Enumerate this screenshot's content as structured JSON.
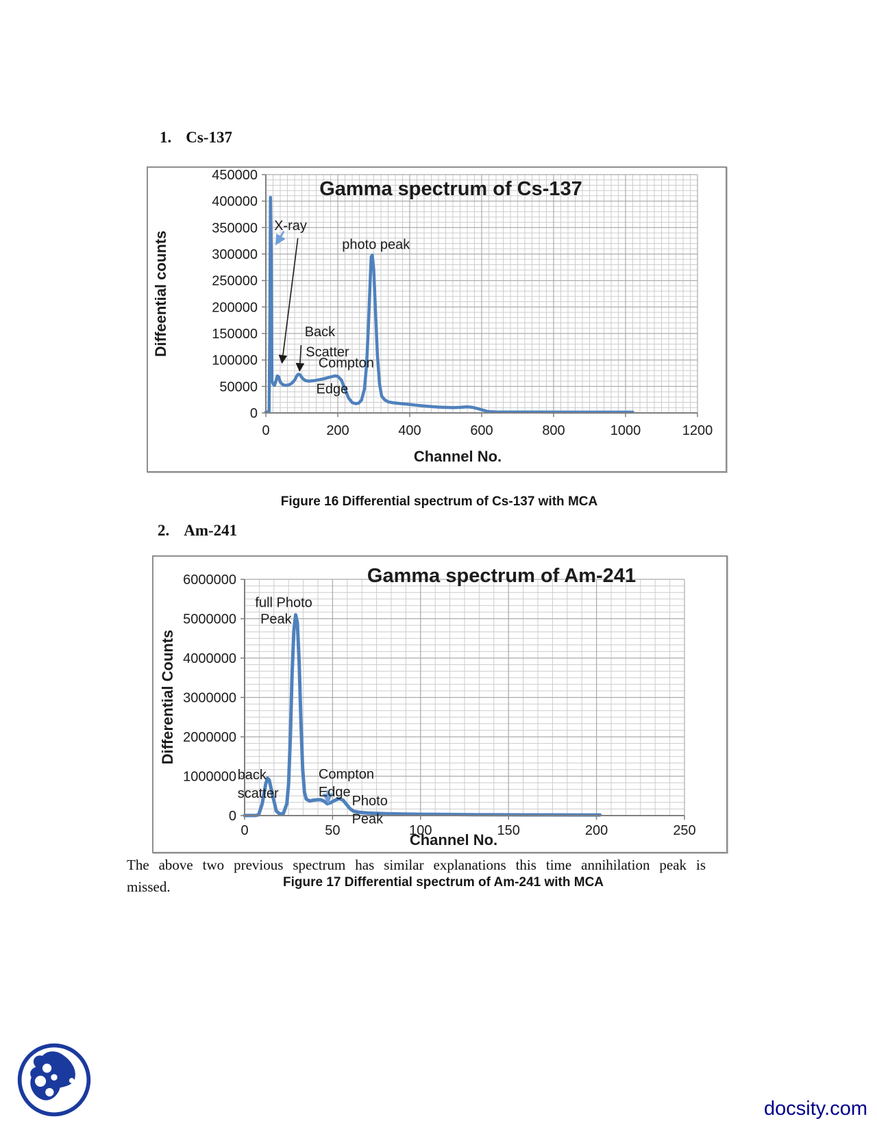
{
  "page": {
    "heading1": {
      "number": "1.",
      "label": "Cs-137"
    },
    "heading2": {
      "number": "2.",
      "label": "Am-241"
    },
    "caption1": "Figure 16 Differential spectrum of Cs-137 with MCA",
    "caption2": "Figure 17 Differential spectrum of Am-241 with MCA",
    "body_lines": [
      "The above two previous spectrum has similar explanations this time annihilation peak is",
      "missed."
    ],
    "footer": {
      "site": "docsity.com"
    }
  },
  "colors": {
    "curve": "#4f81bd",
    "grid_minor": "#cccccc",
    "grid_major": "#ababab",
    "axis": "#7f7f7f",
    "text": "#1c1c1c",
    "arrow_black": "#1a1a1a",
    "arrow_blue": "#6f9fd8",
    "brand_navy": "#00008b",
    "logo_blue": "#1a3a9e"
  },
  "chart_data": [
    {
      "type": "line",
      "title": "Gamma spectrum of Cs-137",
      "xlabel": "Channel No.",
      "ylabel": "Diffeential counts",
      "xlim": [
        0,
        1200
      ],
      "ylim": [
        0,
        450000
      ],
      "xticks": [
        0,
        200,
        400,
        600,
        800,
        1000,
        1200
      ],
      "yticks": [
        0,
        50000,
        100000,
        150000,
        200000,
        250000,
        300000,
        350000,
        400000,
        450000
      ],
      "x_minor_step": 20,
      "y_minor_step": 10000,
      "grid": true,
      "legend": "none",
      "series": [
        {
          "name": "Cs-137 differential spectrum",
          "points": [
            [
              0,
              1500
            ],
            [
              9,
              2000
            ],
            [
              11,
              150000
            ],
            [
              13,
              407000
            ],
            [
              15,
              300000
            ],
            [
              17,
              60000
            ],
            [
              20,
              55000
            ],
            [
              24,
              52000
            ],
            [
              28,
              60000
            ],
            [
              32,
              70000
            ],
            [
              36,
              68000
            ],
            [
              40,
              58000
            ],
            [
              48,
              53000
            ],
            [
              56,
              52000
            ],
            [
              64,
              53000
            ],
            [
              72,
              56000
            ],
            [
              80,
              62000
            ],
            [
              86,
              70000
            ],
            [
              90,
              73000
            ],
            [
              95,
              72000
            ],
            [
              102,
              65000
            ],
            [
              110,
              61000
            ],
            [
              120,
              60000
            ],
            [
              135,
              61000
            ],
            [
              150,
              63000
            ],
            [
              165,
              65000
            ],
            [
              180,
              68000
            ],
            [
              192,
              70000
            ],
            [
              200,
              69000
            ],
            [
              210,
              62000
            ],
            [
              220,
              45000
            ],
            [
              230,
              28000
            ],
            [
              240,
              19500
            ],
            [
              250,
              17500
            ],
            [
              258,
              18500
            ],
            [
              266,
              24000
            ],
            [
              274,
              45000
            ],
            [
              280,
              90000
            ],
            [
              285,
              160000
            ],
            [
              290,
              250000
            ],
            [
              293,
              295000
            ],
            [
              296,
              298000
            ],
            [
              300,
              270000
            ],
            [
              305,
              190000
            ],
            [
              310,
              110000
            ],
            [
              316,
              55000
            ],
            [
              322,
              32000
            ],
            [
              330,
              25000
            ],
            [
              340,
              21000
            ],
            [
              355,
              19000
            ],
            [
              370,
              18000
            ],
            [
              385,
              17000
            ],
            [
              400,
              16000
            ],
            [
              420,
              14500
            ],
            [
              440,
              13000
            ],
            [
              460,
              12000
            ],
            [
              480,
              11000
            ],
            [
              500,
              10500
            ],
            [
              520,
              10000
            ],
            [
              540,
              10500
            ],
            [
              560,
              11500
            ],
            [
              575,
              10500
            ],
            [
              590,
              8000
            ],
            [
              605,
              5000
            ],
            [
              615,
              3000
            ],
            [
              625,
              2200
            ],
            [
              640,
              1800
            ],
            [
              680,
              1600
            ],
            [
              750,
              1500
            ],
            [
              850,
              1400
            ],
            [
              950,
              1400
            ],
            [
              1020,
              1400
            ]
          ]
        }
      ],
      "annotations": [
        {
          "text": "X-ray",
          "x": 23,
          "y": 345000
        },
        {
          "text": "photo peak",
          "x": 212,
          "y": 310000
        },
        {
          "text": "Back",
          "x": 108,
          "y": 145000
        },
        {
          "text": "Scatter",
          "x": 111,
          "y": 107000
        },
        {
          "text": "Compton",
          "x": 146,
          "y": 86000
        },
        {
          "text": "Edge",
          "x": 140,
          "y": 37000
        }
      ],
      "arrows": [
        {
          "x1": 89,
          "y1": 330000,
          "x2": 45,
          "y2": 95000,
          "color": "black"
        },
        {
          "x1": 98,
          "y1": 128000,
          "x2": 94,
          "y2": 80000,
          "color": "black"
        },
        {
          "x1": 50,
          "y1": 343000,
          "x2": 29,
          "y2": 319000,
          "color": "blue"
        }
      ]
    },
    {
      "type": "line",
      "title": "Gamma spectrum of Am-241",
      "xlabel": "Channel No.",
      "ylabel": "Differential Counts",
      "xlim": [
        0,
        250
      ],
      "ylim": [
        0,
        6000000
      ],
      "xticks": [
        0,
        50,
        100,
        150,
        200,
        250
      ],
      "yticks": [
        0,
        1000000,
        2000000,
        3000000,
        4000000,
        5000000,
        6000000
      ],
      "x_minor_step": 8.3333,
      "y_minor_step": 166667,
      "grid": true,
      "legend": "none",
      "series": [
        {
          "name": "Am-241 differential spectrum",
          "points": [
            [
              0,
              1000
            ],
            [
              6,
              2000
            ],
            [
              8,
              20000
            ],
            [
              10,
              300000
            ],
            [
              12,
              800000
            ],
            [
              13,
              950000
            ],
            [
              14,
              900000
            ],
            [
              16,
              500000
            ],
            [
              18,
              120000
            ],
            [
              20,
              35000
            ],
            [
              22,
              50000
            ],
            [
              24,
              300000
            ],
            [
              25,
              800000
            ],
            [
              26,
              2000000
            ],
            [
              27,
              3600000
            ],
            [
              28,
              4700000
            ],
            [
              29,
              5100000
            ],
            [
              30,
              4900000
            ],
            [
              31,
              3900000
            ],
            [
              32,
              2400000
            ],
            [
              33,
              1200000
            ],
            [
              34,
              600000
            ],
            [
              35,
              420000
            ],
            [
              37,
              370000
            ],
            [
              39,
              390000
            ],
            [
              41,
              400000
            ],
            [
              43,
              405000
            ],
            [
              45,
              370000
            ],
            [
              47,
              300000
            ],
            [
              49,
              330000
            ],
            [
              51,
              380000
            ],
            [
              53,
              420000
            ],
            [
              54,
              430000
            ],
            [
              56,
              390000
            ],
            [
              58,
              280000
            ],
            [
              60,
              170000
            ],
            [
              62,
              110000
            ],
            [
              65,
              85000
            ],
            [
              70,
              65000
            ],
            [
              75,
              55000
            ],
            [
              80,
              48000
            ],
            [
              90,
              40000
            ],
            [
              100,
              33000
            ],
            [
              115,
              28000
            ],
            [
              130,
              23000
            ],
            [
              150,
              20000
            ],
            [
              170,
              17000
            ],
            [
              190,
              16000
            ],
            [
              202,
              15000
            ]
          ]
        }
      ],
      "annotations": [
        {
          "text": "full Photo",
          "x": 6,
          "y": 5300000
        },
        {
          "text": "Peak",
          "x": 9,
          "y": 4880000
        },
        {
          "text": "back",
          "x": -4,
          "y": 920000
        },
        {
          "text": "scatter",
          "x": -4,
          "y": 450000
        },
        {
          "text": "Compton",
          "x": 42,
          "y": 940000
        },
        {
          "text": "Edge",
          "x": 42,
          "y": 490000
        },
        {
          "text": "Photo",
          "x": 61,
          "y": 265000
        },
        {
          "text": "Peak",
          "x": 61,
          "y": -200000
        }
      ],
      "arrows": [
        {
          "x1": 47,
          "y1": 640000,
          "x2": 47.5,
          "y2": 330000,
          "color": "blue"
        }
      ]
    }
  ]
}
